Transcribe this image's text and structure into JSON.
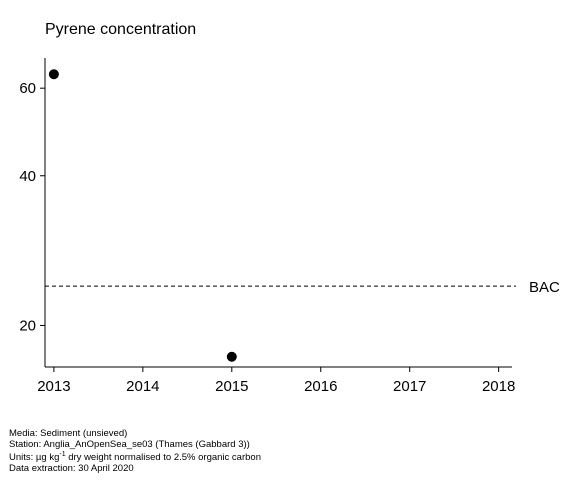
{
  "chart_data": {
    "type": "scatter",
    "title": "Pyrene concentration",
    "xlabel": "",
    "ylabel": "",
    "x_scale": "linear",
    "y_scale": "log",
    "xlim": [
      2012.9,
      2018.15
    ],
    "ylim": [
      16.5,
      69
    ],
    "x_ticks": [
      2013,
      2014,
      2015,
      2016,
      2017,
      2018
    ],
    "y_ticks": [
      20,
      40,
      60
    ],
    "grid": false,
    "legend": "none",
    "points": [
      {
        "x": 2013,
        "y": 64
      },
      {
        "x": 2015,
        "y": 17.3
      }
    ],
    "reference_lines": [
      {
        "label": "BAC",
        "y": 24,
        "style": "dashed"
      }
    ],
    "colors": {
      "points": "#000000",
      "axes": "#000000"
    }
  },
  "footer": {
    "media": "Media: Sediment (unsieved)",
    "station": "Station: Anglia_AnOpenSea_se03 (Thames (Gabbard 3))",
    "units_prefix": "Units:  µg kg",
    "units_exp": "-1",
    "units_suffix": " dry weight normalised to 2.5% organic carbon",
    "extraction": "Data extraction: 30 April 2020"
  }
}
